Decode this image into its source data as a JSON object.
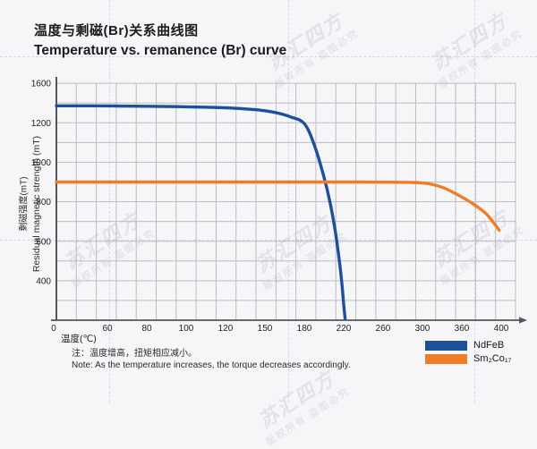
{
  "title": {
    "zh": "温度与剩磁(Br)关系曲线图",
    "en": "Temperature vs. remanence (Br) curve"
  },
  "note": {
    "zh": "注：温度增高，扭矩相应减小。",
    "en": "Note: As the temperature increases, the torque decreases accordingly."
  },
  "watermark": {
    "brand": "苏汇四方",
    "tagline": "版权所有 盗图必究"
  },
  "chart_data": {
    "type": "line",
    "title": "Temperature vs. remanence (Br) curve",
    "title_zh": "温度与剩磁(Br)关系曲线图",
    "xlabel": "温度(℃)",
    "ylabel_zh": "剩磁强度(mT)",
    "ylabel_en": "Residual magnetic strength (mT)",
    "x_ticks": [
      0,
      60,
      80,
      100,
      120,
      150,
      180,
      220,
      260,
      300,
      360,
      400
    ],
    "y_ticks": [
      1600,
      1200,
      1000,
      800,
      600,
      400
    ],
    "ylim": [
      200,
      1600
    ],
    "xlim": [
      0,
      400
    ],
    "grid": true,
    "legend_position": "bottom-right",
    "axis_note": "both axes are non-uniformly spaced exactly as drawn in the source figure",
    "series": [
      {
        "name": "NdFeB",
        "color": "#1e4f9a",
        "points": [
          [
            0,
            1372
          ],
          [
            40,
            1372
          ],
          [
            80,
            1368
          ],
          [
            100,
            1362
          ],
          [
            120,
            1352
          ],
          [
            140,
            1336
          ],
          [
            150,
            1322
          ],
          [
            160,
            1298
          ],
          [
            170,
            1258
          ],
          [
            180,
            1196
          ],
          [
            190,
            1090
          ],
          [
            200,
            925
          ],
          [
            206,
            800
          ],
          [
            211,
            665
          ],
          [
            215,
            525
          ],
          [
            218,
            395
          ],
          [
            220,
            280
          ],
          [
            221.5,
            208
          ]
        ]
      },
      {
        "name": "Sm₂Co₁₇",
        "color": "#ef7d27",
        "points": [
          [
            0,
            900
          ],
          [
            120,
            900
          ],
          [
            240,
            900
          ],
          [
            290,
            898
          ],
          [
            310,
            891
          ],
          [
            330,
            874
          ],
          [
            350,
            842
          ],
          [
            370,
            794
          ],
          [
            385,
            738
          ],
          [
            398,
            656
          ]
        ]
      }
    ]
  }
}
